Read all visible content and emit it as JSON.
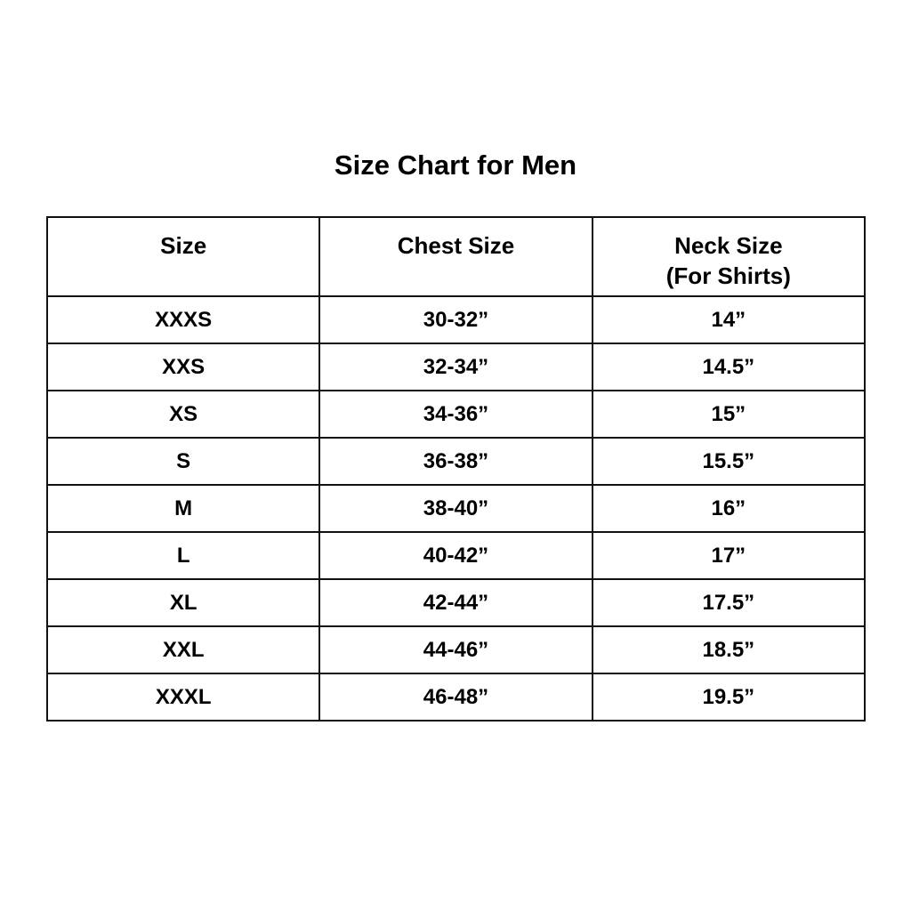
{
  "title": "Size Chart for Men",
  "columns": [
    {
      "label": "Size",
      "sub": ""
    },
    {
      "label": "Chest Size",
      "sub": ""
    },
    {
      "label": "Neck Size",
      "sub": "(For Shirts)"
    }
  ],
  "rows": [
    [
      "XXXS",
      "30-32”",
      "14”"
    ],
    [
      "XXS",
      "32-34”",
      "14.5”"
    ],
    [
      "XS",
      "34-36”",
      "15”"
    ],
    [
      "S",
      "36-38”",
      "15.5”"
    ],
    [
      "M",
      "38-40”",
      "16”"
    ],
    [
      "L",
      "40-42”",
      "17”"
    ],
    [
      "XL",
      "42-44”",
      "17.5”"
    ],
    [
      "XXL",
      "44-46”",
      "18.5”"
    ],
    [
      "XXXL",
      "46-48”",
      "19.5”"
    ]
  ]
}
